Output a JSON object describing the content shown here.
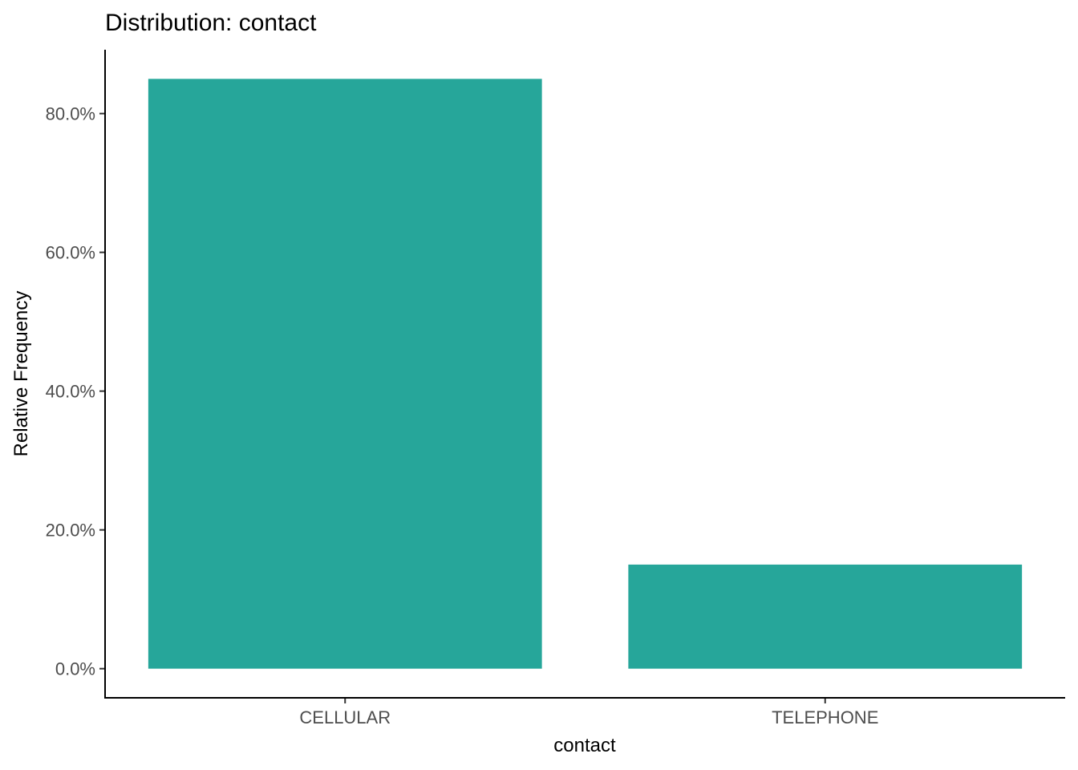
{
  "chart_data": {
    "type": "bar",
    "title": "Distribution: contact",
    "xlabel": "contact",
    "ylabel": "Relative Frequency",
    "categories": [
      "CELLULAR",
      "TELEPHONE"
    ],
    "values": [
      0.85,
      0.15
    ],
    "ylim": [
      -0.042,
      0.892
    ],
    "yticks": [
      0,
      0.2,
      0.4,
      0.6,
      0.8
    ],
    "ytick_labels": [
      "0.0%",
      "20.0%",
      "40.0%",
      "60.0%",
      "80.0%"
    ],
    "bar_color": "#26A69A",
    "grid": false,
    "legend": "none"
  }
}
